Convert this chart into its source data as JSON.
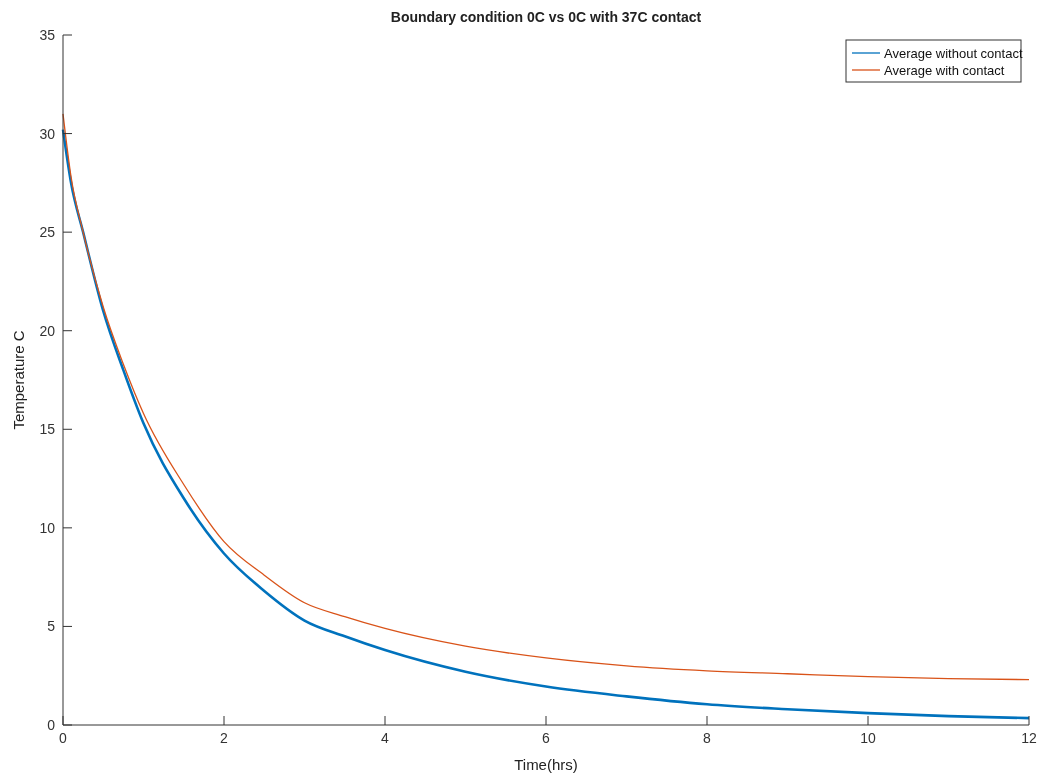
{
  "chart_data": {
    "type": "line",
    "title": "Boundary condition 0C vs 0C with 37C contact",
    "xlabel": "Time(hrs)",
    "ylabel": "Temperature C",
    "x": [
      0,
      0.1,
      0.25,
      0.5,
      0.75,
      1,
      1.5,
      2,
      2.5,
      3,
      3.5,
      4,
      5,
      6,
      7,
      8,
      9,
      10,
      11,
      12
    ],
    "series": [
      {
        "name": "Average without contact",
        "color": "#0072bd",
        "values": [
          30.2,
          27.5,
          25,
          21,
          18,
          15.3,
          11.5,
          8.7,
          6.8,
          5.3,
          4.5,
          3.8,
          2.7,
          1.95,
          1.45,
          1.05,
          0.8,
          0.6,
          0.45,
          0.35
        ]
      },
      {
        "name": "Average with contact",
        "color": "#d95319",
        "values": [
          31,
          27.8,
          25,
          21.2,
          18.3,
          15.8,
          12.2,
          9.3,
          7.6,
          6.2,
          5.5,
          4.9,
          4.0,
          3.4,
          3.0,
          2.75,
          2.6,
          2.45,
          2.35,
          2.3
        ]
      }
    ],
    "xlim": [
      0,
      12
    ],
    "xticks": [
      0,
      2,
      4,
      6,
      8,
      10,
      12
    ],
    "ylim": [
      0,
      35
    ],
    "yticks": [
      0,
      5,
      10,
      15,
      20,
      25,
      30,
      35
    ],
    "legend": "top right",
    "grid": false,
    "marker": "none",
    "line_style": "solid"
  }
}
